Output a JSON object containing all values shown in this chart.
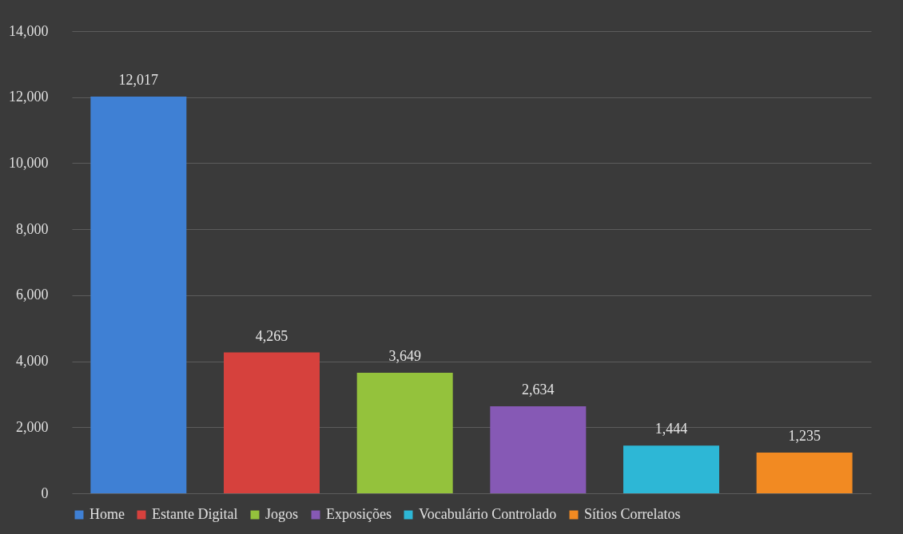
{
  "chart_data": {
    "type": "bar",
    "categories": [
      null,
      null,
      null,
      null,
      null,
      null
    ],
    "series": [
      {
        "name": "Home",
        "color": "#3f80d4",
        "values": [
          12017,
          null,
          null,
          null,
          null,
          null
        ],
        "value_labels": [
          "12,017",
          null,
          null,
          null,
          null,
          null
        ]
      },
      {
        "name": "Estante Digital",
        "color": "#d6413d",
        "values": [
          null,
          4265,
          null,
          null,
          null,
          null
        ],
        "value_labels": [
          null,
          "4,265",
          null,
          null,
          null,
          null
        ]
      },
      {
        "name": "Jogos",
        "color": "#94c23c",
        "values": [
          null,
          null,
          3649,
          null,
          null,
          null
        ],
        "value_labels": [
          null,
          null,
          "3,649",
          null,
          null,
          null
        ]
      },
      {
        "name": "Exposições",
        "color": "#8659b5",
        "values": [
          null,
          null,
          null,
          2634,
          null,
          null
        ],
        "value_labels": [
          null,
          null,
          null,
          "2,634",
          null,
          null
        ]
      },
      {
        "name": "Vocabulário Controlado",
        "color": "#2db7d6",
        "values": [
          null,
          null,
          null,
          null,
          1444,
          null
        ],
        "value_labels": [
          null,
          null,
          null,
          null,
          "1,444",
          null
        ]
      },
      {
        "name": "Sítios Correlatos",
        "color": "#f28a22",
        "values": [
          null,
          null,
          null,
          null,
          null,
          1235
        ],
        "value_labels": [
          null,
          null,
          null,
          null,
          null,
          "1,235"
        ]
      }
    ],
    "ylim": [
      0,
      14000
    ],
    "yticks": [
      0,
      {
        "value": 2000,
        "label": "2,000"
      },
      {
        "value": 4000,
        "label": "4,000"
      },
      {
        "value": 6000,
        "label": "6,000"
      },
      {
        "value": 8000,
        "label": "8,000"
      },
      {
        "value": 10000,
        "label": "10,000"
      },
      {
        "value": 12000,
        "label": "12,000"
      },
      {
        "value": 14000,
        "label": "14,000"
      }
    ],
    "grid": "y",
    "legend": "bottom",
    "tick_labels": "y"
  }
}
